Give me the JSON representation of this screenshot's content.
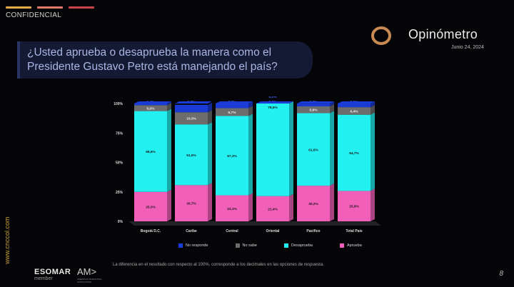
{
  "header": {
    "confidential": "CONFIDENCIAL",
    "bar_colors": [
      "#e6a84c",
      "#e07a6e",
      "#c8454a"
    ]
  },
  "brand": {
    "name": "Opinómetro",
    "date": "Junio 24, 2024",
    "logo_color": "#c98a52"
  },
  "question": {
    "line1": "¿Usted aprueba o desaprueba la manera como el",
    "line2": "Presidente Gustavo Petro está manejando el país?"
  },
  "chart_data": {
    "type": "bar",
    "stacked": true,
    "categories": [
      "Bogotá D.C.",
      "Caribe",
      "Central",
      "Oriental",
      "Pacífico",
      "Total País"
    ],
    "y_ticks": [
      "0%",
      "25%",
      "50%",
      "75%",
      "100%"
    ],
    "ylim": [
      0,
      100
    ],
    "series": [
      {
        "name": "Aprueba",
        "color": "#f25fb8",
        "values": [
          25.0,
          30.7,
          22.1,
          21.4,
          30.2,
          25.8
        ],
        "labels": [
          "25,0%",
          "30,7%",
          "22,1%",
          "21,4%",
          "30,2%",
          "25,8%"
        ]
      },
      {
        "name": "Desaprueba",
        "color": "#23f0f0",
        "values": [
          68.6,
          51.6,
          67.3,
          78.6,
          61.6,
          64.7
        ],
        "labels": [
          "68,6%",
          "51,6%",
          "67,3%",
          "78,6%",
          "61,6%",
          "64,7%"
        ]
      },
      {
        "name": "No sabe",
        "color": "#6d6d6d",
        "values": [
          5.0,
          10.3,
          6.7,
          0.0,
          5.8,
          6.4
        ],
        "labels": [
          "5,0%",
          "10,3%",
          "6,7%",
          "0,0%",
          "5,8%",
          "6,4%"
        ]
      },
      {
        "name": "No responde",
        "color": "#1a3bd6",
        "values": [
          1.4,
          6.3,
          3.9,
          0.0,
          2.3,
          3.1
        ],
        "labels": [
          "1,4%",
          "6,3%",
          "3,9%",
          "0,0%",
          "2,3%",
          "3,1%"
        ]
      }
    ],
    "legend_order": [
      "No responde",
      "No sabe",
      "Desaprueba",
      "Aprueba"
    ],
    "legend_position": "bottom"
  },
  "footnote": "La diferencia en el resultado con respecto al 100%, corresponde a los decimales en las opciones de respuesta.",
  "website": "www.cnccol.com",
  "footer": {
    "esomar": "ESOMAR",
    "esomar_sub": "member",
    "amc": "AM>",
    "amc_sub": "AMERICAN MARKETING ASSOCIATION"
  },
  "page_number": "8"
}
